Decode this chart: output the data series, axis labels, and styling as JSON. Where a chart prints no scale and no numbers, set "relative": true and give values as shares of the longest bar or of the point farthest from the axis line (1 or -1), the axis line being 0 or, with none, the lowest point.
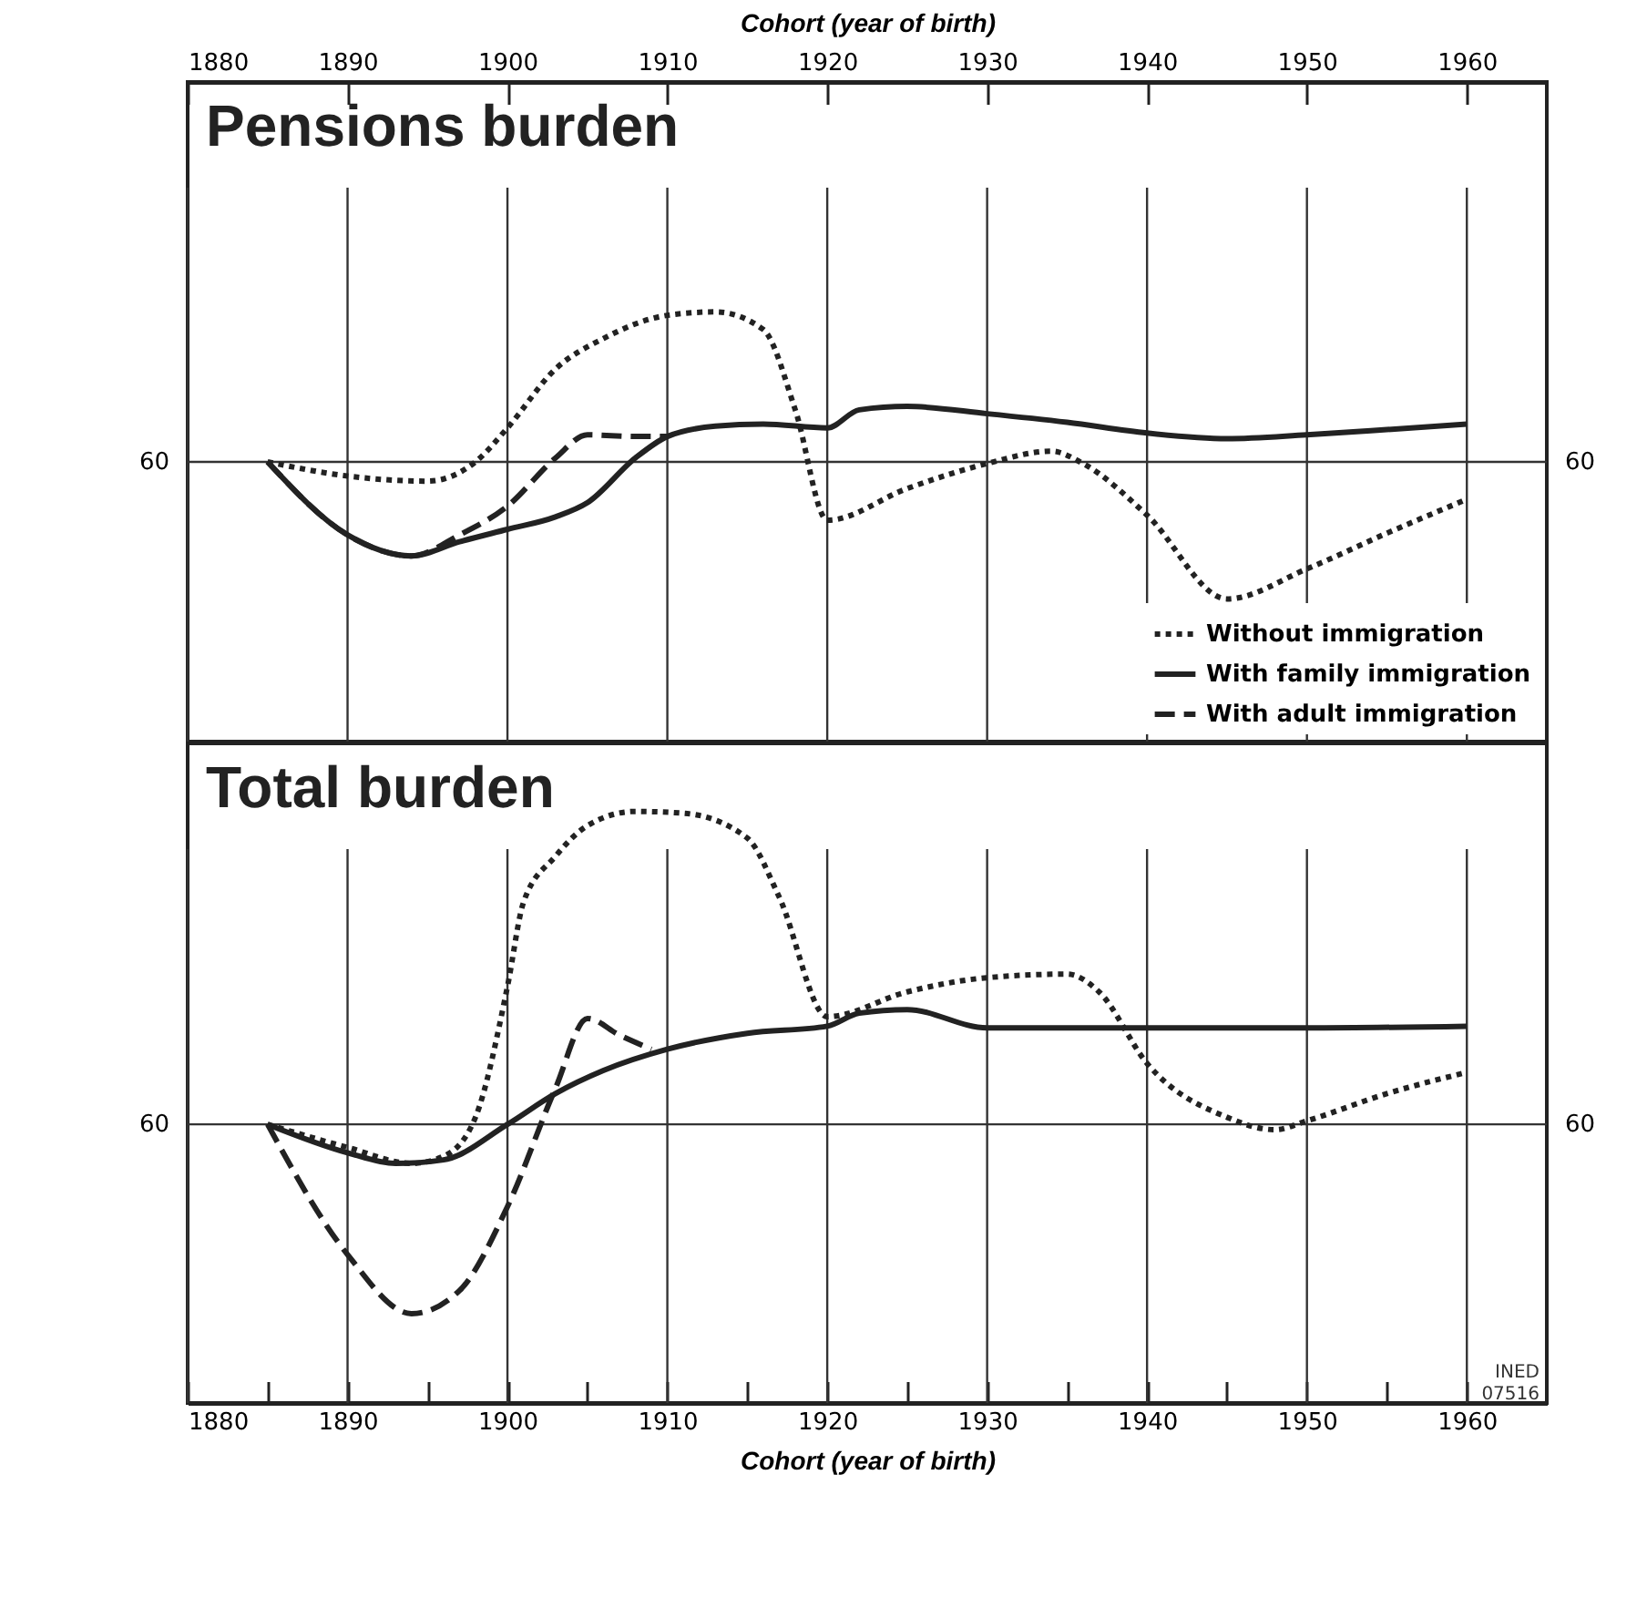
{
  "chart_data": [
    {
      "type": "line",
      "title": "Pensions burden",
      "xlabel": "Cohort (year of birth)",
      "relative": true,
      "xlim": [
        1880,
        1965
      ],
      "xticks": [
        1880,
        1890,
        1900,
        1910,
        1920,
        1930,
        1940,
        1950,
        1960
      ],
      "grid": "x",
      "legend": "bottom right",
      "marker": "none",
      "ref_lines": [
        {
          "axis": "y",
          "value": 0.651
        }
      ],
      "annotations": [
        "60"
      ],
      "series": [
        {
          "name": "Without immigration",
          "color": "#222222",
          "line_style": "dotted",
          "x": [
            1885,
            1890,
            1895,
            1898,
            1900,
            1903,
            1906,
            1910,
            1913,
            1916,
            1918,
            1920,
            1925,
            1930,
            1934,
            1936,
            1940,
            1945,
            1950,
            1955,
            1960
          ],
          "values": [
            0.651,
            0.618,
            0.606,
            0.651,
            0.73,
            0.867,
            0.938,
            0.992,
            1.0,
            0.959,
            0.772,
            0.515,
            0.589,
            0.647,
            0.676,
            0.647,
            0.527,
            0.332,
            0.402,
            0.485,
            0.564
          ]
        },
        {
          "name": "With family immigration",
          "color": "#222222",
          "line_style": "solid",
          "x": [
            1885,
            1890,
            1894,
            1897,
            1900,
            1903,
            1905,
            1908,
            1910,
            1913,
            1916,
            1920,
            1922,
            1925,
            1930,
            1935,
            1940,
            1945,
            1950,
            1955,
            1960
          ],
          "values": [
            0.651,
            0.481,
            0.432,
            0.465,
            0.494,
            0.523,
            0.556,
            0.66,
            0.71,
            0.734,
            0.739,
            0.73,
            0.772,
            0.78,
            0.763,
            0.743,
            0.718,
            0.705,
            0.714,
            0.726,
            0.739
          ]
        },
        {
          "name": "With adult immigration",
          "color": "#222222",
          "line_style": "dashed",
          "x": [
            1885,
            1890,
            1894,
            1897,
            1900,
            1903,
            1905,
            1908,
            1910
          ],
          "values": [
            0.651,
            0.481,
            0.432,
            0.481,
            0.548,
            0.66,
            0.714,
            0.71,
            0.71
          ]
        }
      ]
    },
    {
      "type": "line",
      "title": "Total burden",
      "xlabel": "Cohort (year of birth)",
      "relative": true,
      "xlim": [
        1880,
        1965
      ],
      "xticks": [
        1880,
        {
          "value": 1885,
          "label": null
        },
        1890,
        {
          "value": 1895,
          "label": null
        },
        1900,
        {
          "value": 1905,
          "label": null
        },
        1910,
        {
          "value": 1915,
          "label": null
        },
        1920,
        {
          "value": 1925,
          "label": null
        },
        1930,
        {
          "value": 1935,
          "label": null
        },
        1940,
        {
          "value": 1945,
          "label": null
        },
        1950,
        {
          "value": 1955,
          "label": null
        },
        1960
      ],
      "grid": "x",
      "marker": "none",
      "ref_lines": [
        {
          "axis": "y",
          "value": 0.471
        }
      ],
      "annotations": [
        "60",
        "INED 07516"
      ],
      "series": [
        {
          "color": "#222222",
          "line_style": "dotted",
          "x": [
            1885,
            1890,
            1894,
            1896,
            1898,
            1900,
            1901,
            1903,
            1905,
            1908,
            1911,
            1915,
            1917,
            1920,
            1925,
            1930,
            1935,
            1937,
            1940,
            1945,
            1948,
            1950,
            1955,
            1960
          ],
          "values": [
            0.471,
            0.432,
            0.405,
            0.417,
            0.483,
            0.704,
            0.846,
            0.924,
            0.976,
            1.0,
            0.997,
            0.955,
            0.855,
            0.653,
            0.695,
            0.719,
            0.725,
            0.695,
            0.574,
            0.483,
            0.462,
            0.477,
            0.523,
            0.559
          ]
        },
        {
          "color": "#222222",
          "line_style": "solid",
          "x": [
            1885,
            1890,
            1893,
            1896,
            1900,
            1903,
            1906,
            1910,
            1915,
            1920,
            1922,
            1925,
            1930,
            1940,
            1950,
            1960
          ],
          "values": [
            0.471,
            0.423,
            0.405,
            0.411,
            0.471,
            0.523,
            0.562,
            0.598,
            0.625,
            0.637,
            0.659,
            0.665,
            0.634,
            0.634,
            0.634,
            0.637
          ]
        },
        {
          "color": "#222222",
          "line_style": "dashed",
          "x": [
            1885,
            1890,
            1894,
            1897,
            1900,
            1903,
            1905,
            1907,
            1909
          ],
          "values": [
            0.471,
            0.251,
            0.151,
            0.19,
            0.332,
            0.532,
            0.65,
            0.622,
            0.598
          ]
        }
      ]
    }
  ]
}
